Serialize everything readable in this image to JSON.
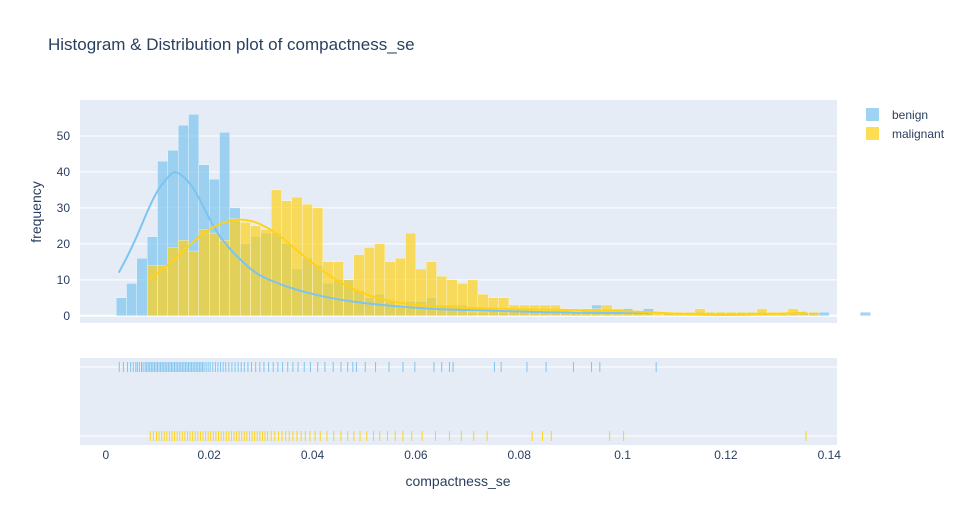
{
  "chart_data": {
    "type": "histogram",
    "title": "Histogram & Distribution plot of compactness_se",
    "xlabel": "compactness_se",
    "ylabel": "frequency",
    "xlim": [
      -0.005,
      0.1415
    ],
    "ylim": [
      -2,
      60
    ],
    "x_ticks": [
      0,
      0.02,
      0.04,
      0.06,
      0.08,
      0.1,
      0.12,
      0.14
    ],
    "x_tick_labels": [
      "0",
      "0.02",
      "0.04",
      "0.06",
      "0.08",
      "0.1",
      "0.12",
      "0.14"
    ],
    "y_ticks": [
      0,
      10,
      20,
      30,
      40,
      50
    ],
    "y_tick_labels": [
      "0",
      "10",
      "20",
      "30",
      "40",
      "50"
    ],
    "grid": true,
    "legend_position": "top-right",
    "bin_width": 0.002,
    "series": [
      {
        "name": "benign",
        "color": "#7ec4f0",
        "bin_start": 0.002,
        "counts": [
          5,
          9,
          16,
          22,
          43,
          46,
          53,
          56,
          42,
          38,
          51,
          30,
          20,
          22,
          23,
          23,
          20,
          13,
          16,
          14,
          9,
          10,
          10,
          7,
          5,
          6,
          4,
          3,
          4,
          4,
          5,
          3,
          3,
          3,
          1,
          1,
          2,
          1,
          2,
          2,
          1,
          1,
          1,
          1,
          1,
          1,
          3,
          1,
          1,
          2,
          1,
          2,
          0,
          1,
          1,
          1,
          1,
          1,
          1,
          1,
          1,
          1,
          1,
          1,
          1,
          1,
          1,
          1,
          1,
          0,
          0,
          0,
          1
        ],
        "kde": {
          "x": [
            0.0025,
            0.004,
            0.006,
            0.008,
            0.01,
            0.012,
            0.013,
            0.014,
            0.016,
            0.018,
            0.02,
            0.022,
            0.025,
            0.028,
            0.03,
            0.035,
            0.04,
            0.045,
            0.05,
            0.055,
            0.06,
            0.065,
            0.07,
            0.075,
            0.08,
            0.085,
            0.09,
            0.095,
            0.1,
            0.105
          ],
          "y": [
            12,
            16,
            22,
            29,
            35,
            38.5,
            40,
            39.8,
            37.5,
            33,
            27,
            22,
            17,
            13,
            11,
            8,
            6,
            4.5,
            3.5,
            2.8,
            2.2,
            1.8,
            1.6,
            1.4,
            1.2,
            1.0,
            0.9,
            0.8,
            0.8,
            0.8
          ]
        },
        "rug": [
          0.0026,
          0.0034,
          0.0042,
          0.0048,
          0.0053,
          0.0058,
          0.0061,
          0.0065,
          0.0069,
          0.0072,
          0.0076,
          0.0079,
          0.0082,
          0.0085,
          0.0088,
          0.0091,
          0.0094,
          0.0097,
          0.01,
          0.0103,
          0.0106,
          0.0109,
          0.0112,
          0.0115,
          0.0118,
          0.0121,
          0.0124,
          0.0127,
          0.013,
          0.0133,
          0.0136,
          0.0139,
          0.0142,
          0.0145,
          0.0148,
          0.0151,
          0.0154,
          0.0157,
          0.016,
          0.0163,
          0.0166,
          0.0169,
          0.0172,
          0.0175,
          0.0178,
          0.0181,
          0.0184,
          0.0187,
          0.019,
          0.0194,
          0.0198,
          0.0202,
          0.0207,
          0.0212,
          0.0217,
          0.0222,
          0.0227,
          0.0232,
          0.0238,
          0.0244,
          0.025,
          0.0256,
          0.0262,
          0.0268,
          0.0275,
          0.0282,
          0.029,
          0.0298,
          0.0306,
          0.0315,
          0.0324,
          0.0333,
          0.0342,
          0.0352,
          0.0362,
          0.0372,
          0.0384,
          0.0396,
          0.041,
          0.0424,
          0.044,
          0.0455,
          0.0468,
          0.0478,
          0.0485,
          0.0502,
          0.0522,
          0.0548,
          0.0575,
          0.0598,
          0.0635,
          0.065,
          0.0665,
          0.0672,
          0.0752,
          0.0765,
          0.0815,
          0.0852,
          0.0905,
          0.094,
          0.0956,
          0.1065
        ]
      },
      {
        "name": "malignant",
        "color": "#ffd21a",
        "bin_start": 0.008,
        "counts": [
          14,
          14,
          19,
          21,
          18,
          24,
          23,
          21,
          27,
          26,
          25,
          24,
          35,
          32,
          33,
          31,
          30,
          15,
          15,
          10,
          17,
          19,
          20,
          15,
          16,
          23,
          13,
          15,
          11,
          10,
          9,
          10,
          6,
          5,
          5,
          3,
          3,
          3,
          3,
          3,
          2,
          1,
          2,
          2,
          3,
          2,
          1,
          1,
          1,
          1,
          1,
          1,
          1,
          2,
          1,
          1,
          1,
          1,
          1,
          2,
          1,
          1,
          2,
          1,
          1
        ],
        "kde": {
          "x": [
            0.0085,
            0.01,
            0.012,
            0.015,
            0.018,
            0.021,
            0.024,
            0.026,
            0.028,
            0.03,
            0.033,
            0.036,
            0.04,
            0.045,
            0.05,
            0.055,
            0.06,
            0.065,
            0.07,
            0.075,
            0.08,
            0.085,
            0.09,
            0.095,
            0.1,
            0.105,
            0.11,
            0.115,
            0.12,
            0.125,
            0.13,
            0.1355
          ],
          "y": [
            10,
            12,
            14,
            18,
            22,
            25,
            26.5,
            26.8,
            26.5,
            25.5,
            23,
            19.5,
            14.5,
            9.5,
            6,
            4,
            3,
            2.5,
            2.2,
            2,
            1.8,
            1.7,
            1.6,
            1.5,
            1.3,
            1.0,
            0.6,
            0.3,
            0.2,
            0.3,
            0.6,
            0.9
          ]
        },
        "rug": [
          0.0086,
          0.0092,
          0.0098,
          0.0103,
          0.0108,
          0.0113,
          0.0118,
          0.0123,
          0.0128,
          0.0133,
          0.0138,
          0.0143,
          0.0148,
          0.0153,
          0.0158,
          0.0163,
          0.0168,
          0.0173,
          0.0178,
          0.0183,
          0.0188,
          0.0193,
          0.0198,
          0.0203,
          0.0208,
          0.0213,
          0.0218,
          0.0223,
          0.0228,
          0.0233,
          0.0238,
          0.0243,
          0.0248,
          0.0253,
          0.0258,
          0.0263,
          0.0268,
          0.0273,
          0.0278,
          0.0283,
          0.0288,
          0.0293,
          0.0298,
          0.0303,
          0.0308,
          0.0313,
          0.032,
          0.0327,
          0.0334,
          0.0341,
          0.0348,
          0.0355,
          0.0362,
          0.037,
          0.0378,
          0.0386,
          0.0395,
          0.0405,
          0.0415,
          0.0428,
          0.0441,
          0.0455,
          0.0468,
          0.048,
          0.0492,
          0.0505,
          0.0518,
          0.053,
          0.0545,
          0.056,
          0.0575,
          0.0592,
          0.0612,
          0.0638,
          0.0665,
          0.0688,
          0.0712,
          0.0738,
          0.0825,
          0.0845,
          0.0862,
          0.0975,
          0.1002,
          0.1355
        ]
      }
    ]
  }
}
